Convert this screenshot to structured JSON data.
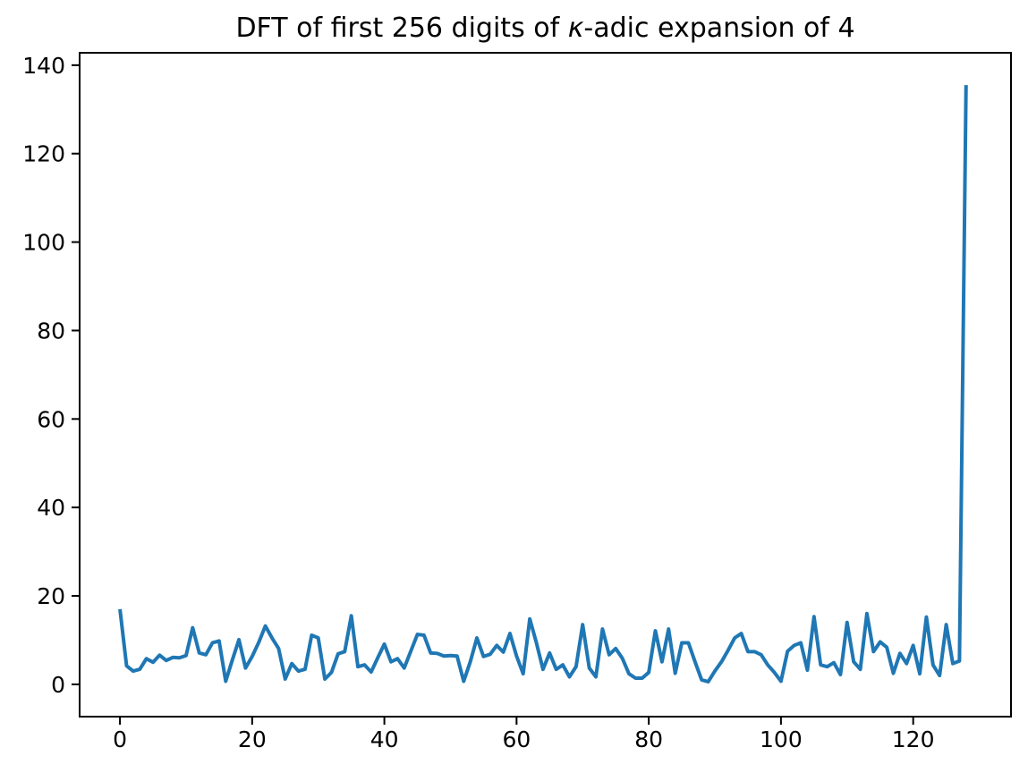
{
  "figure": {
    "background": "#ffffff",
    "title": {
      "prefix": "DFT of first 256 digits of ",
      "kappa": "κ",
      "suffix": "-adic expansion of 4"
    }
  },
  "chart_data": {
    "type": "line",
    "title": "DFT of first 256 digits of κ-adic expansion of 4",
    "xlabel": "",
    "ylabel": "",
    "x_is_index": true,
    "x_start": 0,
    "x_end": 128,
    "values": [
      17.0,
      4.2,
      3.0,
      3.4,
      5.8,
      5.0,
      6.6,
      5.4,
      6.1,
      6.0,
      6.5,
      12.8,
      7.1,
      6.7,
      9.4,
      9.8,
      0.7,
      5.5,
      10.1,
      3.7,
      6.3,
      9.5,
      13.2,
      10.5,
      8.1,
      1.2,
      4.7,
      3.0,
      3.4,
      11.1,
      10.5,
      1.2,
      2.7,
      6.9,
      7.4,
      15.5,
      4.0,
      4.4,
      2.8,
      6.0,
      9.1,
      5.1,
      5.8,
      3.7,
      7.5,
      11.3,
      11.1,
      7.1,
      7.0,
      6.4,
      6.5,
      6.4,
      0.7,
      5.1,
      10.5,
      6.3,
      6.8,
      8.8,
      7.3,
      11.5,
      6.4,
      2.4,
      14.8,
      9.4,
      3.4,
      7.1,
      3.4,
      4.4,
      1.7,
      4.0,
      13.5,
      3.7,
      1.7,
      12.5,
      6.7,
      8.1,
      5.9,
      2.4,
      1.4,
      1.4,
      2.7,
      12.1,
      5.1,
      12.5,
      2.5,
      9.4,
      9.4,
      5.1,
      1.0,
      0.6,
      3.0,
      5.1,
      7.7,
      10.5,
      11.5,
      7.4,
      7.4,
      6.7,
      4.4,
      2.7,
      0.7,
      7.5,
      8.8,
      9.4,
      3.2,
      15.3,
      4.4,
      4.0,
      4.9,
      2.2,
      14.0,
      5.1,
      3.4,
      16.0,
      7.4,
      9.6,
      8.4,
      2.5,
      7.0,
      4.7,
      8.8,
      2.4,
      15.2,
      4.4,
      2.0,
      13.5,
      4.7,
      5.3,
      135.5
    ],
    "x_ticks": [
      0,
      20,
      40,
      60,
      80,
      100,
      120
    ],
    "y_ticks": [
      0,
      20,
      40,
      60,
      80,
      100,
      120,
      140
    ],
    "xlim": [
      -6.1,
      134.8
    ],
    "ylim": [
      -7.3,
      142.8
    ],
    "line_color": "#1f77b4",
    "axis_color": "#000000",
    "grid": false,
    "legend": null
  }
}
